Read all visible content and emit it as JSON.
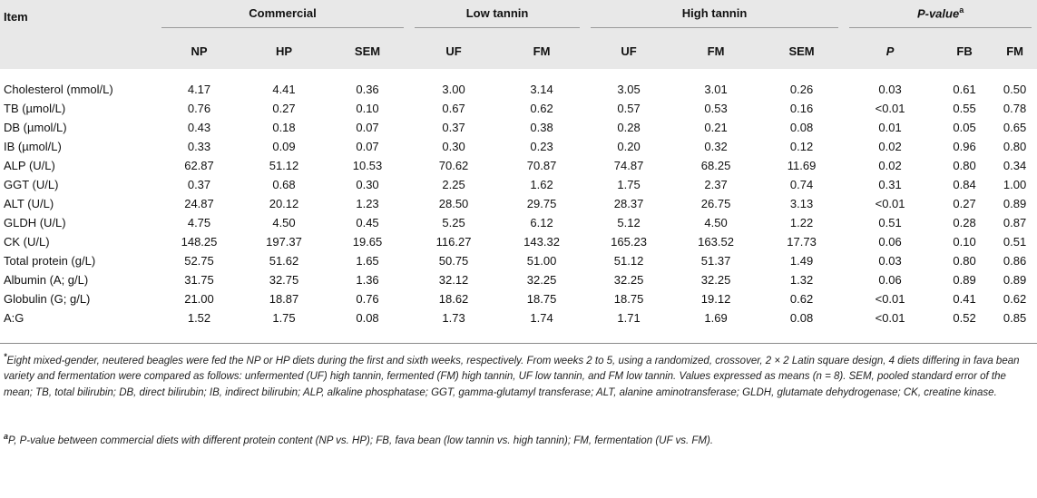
{
  "columns": {
    "item": "Item",
    "groups": [
      "Commercial",
      "Low tannin",
      "High tannin"
    ],
    "pvalue_group": "P-value",
    "pvalue_sup": "a",
    "sub": [
      "NP",
      "HP",
      "SEM",
      "UF",
      "FM",
      "UF",
      "FM",
      "SEM",
      "P",
      "FB",
      "FM"
    ]
  },
  "rows": [
    {
      "item": "Cholesterol (mmol/L)",
      "values": [
        "4.17",
        "4.41",
        "0.36",
        "3.00",
        "3.14",
        "3.05",
        "3.01",
        "0.26",
        "0.03",
        "0.61",
        "0.50"
      ]
    },
    {
      "item": "TB (µmol/L)",
      "values": [
        "0.76",
        "0.27",
        "0.10",
        "0.67",
        "0.62",
        "0.57",
        "0.53",
        "0.16",
        "<0.01",
        "0.55",
        "0.78"
      ]
    },
    {
      "item": "DB (µmol/L)",
      "values": [
        "0.43",
        "0.18",
        "0.07",
        "0.37",
        "0.38",
        "0.28",
        "0.21",
        "0.08",
        "0.01",
        "0.05",
        "0.65"
      ]
    },
    {
      "item": "IB (µmol/L)",
      "values": [
        "0.33",
        "0.09",
        "0.07",
        "0.30",
        "0.23",
        "0.20",
        "0.32",
        "0.12",
        "0.02",
        "0.96",
        "0.80"
      ]
    },
    {
      "item": "ALP (U/L)",
      "values": [
        "62.87",
        "51.12",
        "10.53",
        "70.62",
        "70.87",
        "74.87",
        "68.25",
        "11.69",
        "0.02",
        "0.80",
        "0.34"
      ]
    },
    {
      "item": "GGT (U/L)",
      "values": [
        "0.37",
        "0.68",
        "0.30",
        "2.25",
        "1.62",
        "1.75",
        "2.37",
        "0.74",
        "0.31",
        "0.84",
        "1.00"
      ]
    },
    {
      "item": "ALT (U/L)",
      "values": [
        "24.87",
        "20.12",
        "1.23",
        "28.50",
        "29.75",
        "28.37",
        "26.75",
        "3.13",
        "<0.01",
        "0.27",
        "0.89"
      ]
    },
    {
      "item": "GLDH (U/L)",
      "values": [
        "4.75",
        "4.50",
        "0.45",
        "5.25",
        "6.12",
        "5.12",
        "4.50",
        "1.22",
        "0.51",
        "0.28",
        "0.87"
      ]
    },
    {
      "item": "CK (U/L)",
      "values": [
        "148.25",
        "197.37",
        "19.65",
        "116.27",
        "143.32",
        "165.23",
        "163.52",
        "17.73",
        "0.06",
        "0.10",
        "0.51"
      ]
    },
    {
      "item": "Total protein (g/L)",
      "values": [
        "52.75",
        "51.62",
        "1.65",
        "50.75",
        "51.00",
        "51.12",
        "51.37",
        "1.49",
        "0.03",
        "0.80",
        "0.86"
      ]
    },
    {
      "item": "Albumin (A; g/L)",
      "values": [
        "31.75",
        "32.75",
        "1.36",
        "32.12",
        "32.25",
        "32.25",
        "32.25",
        "1.32",
        "0.06",
        "0.89",
        "0.89"
      ]
    },
    {
      "item": "Globulin (G; g/L)",
      "values": [
        "21.00",
        "18.87",
        "0.76",
        "18.62",
        "18.75",
        "18.75",
        "19.12",
        "0.62",
        "<0.01",
        "0.41",
        "0.62"
      ]
    },
    {
      "item": "A:G",
      "values": [
        "1.52",
        "1.75",
        "0.08",
        "1.73",
        "1.74",
        "1.71",
        "1.69",
        "0.08",
        "<0.01",
        "0.52",
        "0.85"
      ]
    }
  ],
  "footnotes": {
    "star_mark": "*",
    "star_text": "Eight mixed-gender, neutered beagles were fed the NP or HP diets during the first and sixth weeks, respectively. From weeks 2 to 5, using a randomized, crossover, 2 × 2 Latin square design, 4 diets differing in fava bean variety and fermentation were compared as follows: unfermented (UF) high tannin, fermented (FM) high tannin, UF low tannin, and FM low tannin. Values expressed as means (n = 8). SEM, pooled standard error of the mean; TB, total bilirubin; DB, direct bilirubin; IB, indirect bilirubin; ALP, alkaline phosphatase; GGT, gamma-glutamyl transferase; ALT, alanine aminotransferase; GLDH, glutamate dehydrogenase; CK, creatine kinase.",
    "a_mark": "a",
    "a_text": "P, P-value between commercial diets with different protein content (NP vs. HP); FB, fava bean (low tannin vs. high tannin); FM, fermentation (UF vs. FM)."
  }
}
